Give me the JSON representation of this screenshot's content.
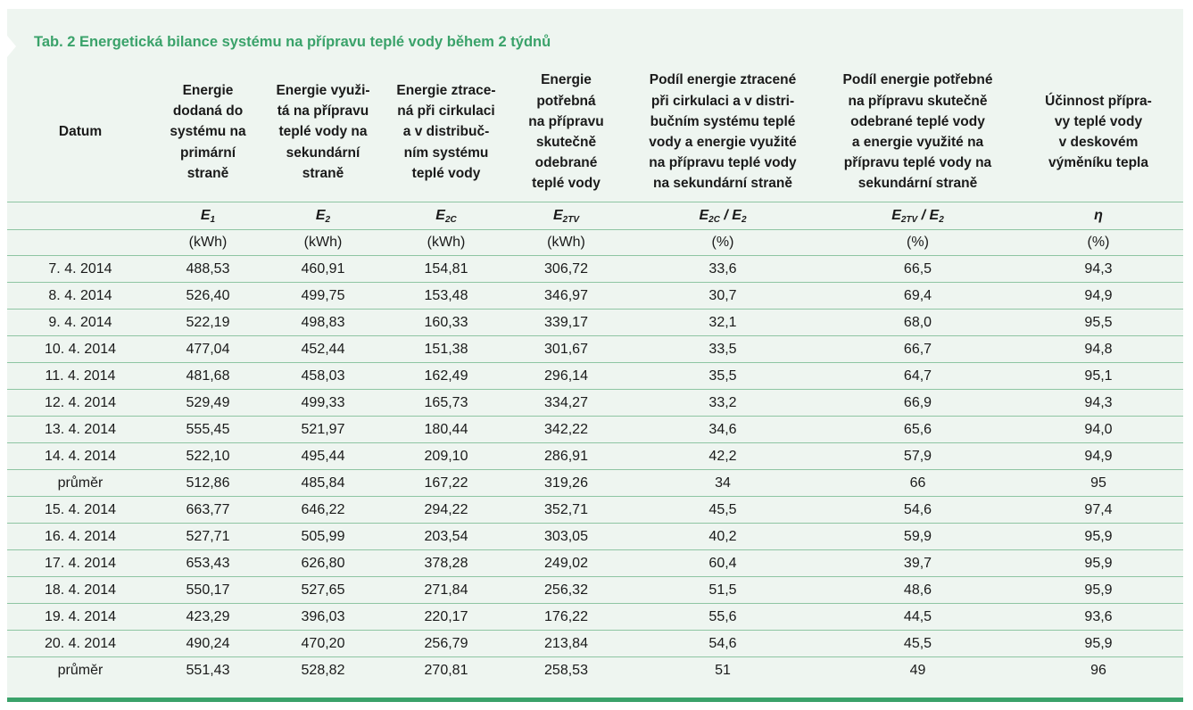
{
  "title": "Tab. 2 Energetická bilance systému na přípravu teplé vody během 2 týdnů",
  "headers": [
    [
      "Datum"
    ],
    [
      "Energie",
      "dodaná do",
      "systému na",
      "primární",
      "straně"
    ],
    [
      "Energie využi-",
      "tá na přípravu",
      "teplé vody na",
      "sekundární",
      "straně"
    ],
    [
      "Energie ztrace-",
      "ná při cirkulaci",
      "a v distribuč-",
      "ním systému",
      "teplé vody"
    ],
    [
      "Energie",
      "potřebná",
      "na přípravu",
      "skutečně",
      "odebrané",
      "teplé vody"
    ],
    [
      "Podíl energie ztracené",
      "při cirkulaci a v distri-",
      "bučním systému teplé",
      "vody a energie využité",
      "na přípravu teplé vody",
      "na sekundární straně"
    ],
    [
      "Podíl energie potřebné",
      "na přípravu skutečně",
      "odebrané teplé vody",
      "a energie využité na",
      "přípravu teplé vody na",
      "sekundární straně"
    ],
    [
      "Účinnost přípra-",
      "vy teplé vody",
      "v deskovém",
      "výměníku tepla"
    ]
  ],
  "symbols": [
    {
      "base": "",
      "sub": "",
      "rest": ""
    },
    {
      "base": "E",
      "sub": "1",
      "rest": ""
    },
    {
      "base": "E",
      "sub": "2",
      "rest": ""
    },
    {
      "base": "E",
      "sub": "2C",
      "rest": ""
    },
    {
      "base": "E",
      "sub": "2TV",
      "rest": ""
    },
    {
      "base": "E",
      "sub": "2C",
      "rest": " / E",
      "sub2": "2"
    },
    {
      "base": "E",
      "sub": "2TV",
      "rest": " / E",
      "sub2": "2"
    },
    {
      "base": "η",
      "sub": "",
      "rest": ""
    }
  ],
  "units": [
    "",
    "(kWh)",
    "(kWh)",
    "(kWh)",
    "(kWh)",
    "(%)",
    "(%)",
    "(%)"
  ],
  "rows": [
    [
      "7. 4. 2014",
      "488,53",
      "460,91",
      "154,81",
      "306,72",
      "33,6",
      "66,5",
      "94,3"
    ],
    [
      "8. 4. 2014",
      "526,40",
      "499,75",
      "153,48",
      "346,97",
      "30,7",
      "69,4",
      "94,9"
    ],
    [
      "9. 4. 2014",
      "522,19",
      "498,83",
      "160,33",
      "339,17",
      "32,1",
      "68,0",
      "95,5"
    ],
    [
      "10. 4. 2014",
      "477,04",
      "452,44",
      "151,38",
      "301,67",
      "33,5",
      "66,7",
      "94,8"
    ],
    [
      "11. 4. 2014",
      "481,68",
      "458,03",
      "162,49",
      "296,14",
      "35,5",
      "64,7",
      "95,1"
    ],
    [
      "12. 4. 2014",
      "529,49",
      "499,33",
      "165,73",
      "334,27",
      "33,2",
      "66,9",
      "94,3"
    ],
    [
      "13. 4. 2014",
      "555,45",
      "521,97",
      "180,44",
      "342,22",
      "34,6",
      "65,6",
      "94,0"
    ],
    [
      "14. 4. 2014",
      "522,10",
      "495,44",
      "209,10",
      "286,91",
      "42,2",
      "57,9",
      "94,9"
    ],
    [
      "průměr",
      "512,86",
      "485,84",
      "167,22",
      "319,26",
      "34",
      "66",
      "95"
    ],
    [
      "15. 4. 2014",
      "663,77",
      "646,22",
      "294,22",
      "352,71",
      "45,5",
      "54,6",
      "97,4"
    ],
    [
      "16. 4. 2014",
      "527,71",
      "505,99",
      "203,54",
      "303,05",
      "40,2",
      "59,9",
      "95,9"
    ],
    [
      "17. 4. 2014",
      "653,43",
      "626,80",
      "378,28",
      "249,02",
      "60,4",
      "39,7",
      "95,9"
    ],
    [
      "18. 4. 2014",
      "550,17",
      "527,65",
      "271,84",
      "256,32",
      "51,5",
      "48,6",
      "95,9"
    ],
    [
      "19. 4. 2014",
      "423,29",
      "396,03",
      "220,17",
      "176,22",
      "55,6",
      "44,5",
      "93,6"
    ],
    [
      "20. 4. 2014",
      "490,24",
      "470,20",
      "256,79",
      "213,84",
      "54,6",
      "45,5",
      "95,9"
    ],
    [
      "průměr",
      "551,43",
      "528,82",
      "270,81",
      "258,53",
      "51",
      "49",
      "96"
    ]
  ],
  "colors": {
    "accent": "#3aa26a",
    "panel_bg": "#eef5f0",
    "rule": "#8ec5a3"
  }
}
